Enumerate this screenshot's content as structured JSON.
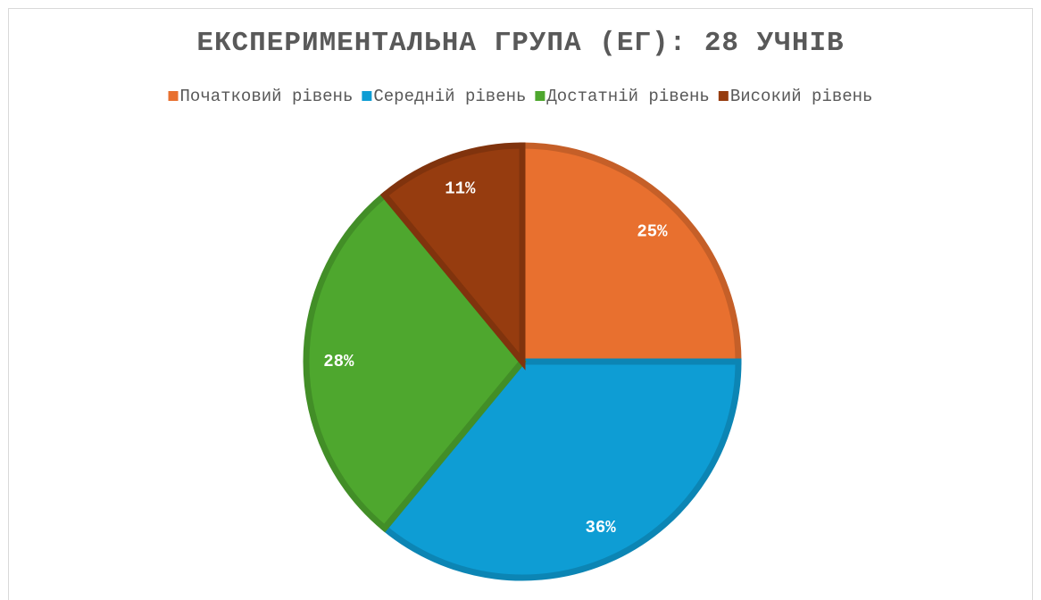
{
  "chart_data": {
    "type": "pie",
    "title": "ЕКСПЕРИМЕНТАЛЬНА ГРУПА (ЕГ): 28 УЧНІВ",
    "categories": [
      "Початковий рівень",
      "Середній рівень",
      "Достатній рівень",
      "Високий рівень"
    ],
    "values": [
      25,
      36,
      28,
      11
    ],
    "value_labels": [
      "25%",
      "36%",
      "28%",
      "11%"
    ],
    "colors": [
      "#e8702f",
      "#0e9dd4",
      "#4ea72e",
      "#963c0f"
    ],
    "legend": "top"
  }
}
